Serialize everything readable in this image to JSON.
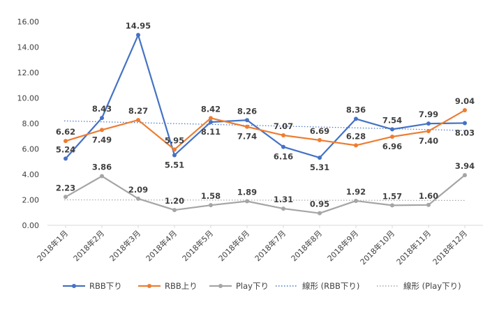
{
  "chart_data": {
    "type": "line",
    "title": "",
    "xlabel": "",
    "ylabel": "",
    "ylim": [
      0,
      16
    ],
    "ytick_step": 2,
    "ytick_labels": [
      "0.00",
      "2.00",
      "4.00",
      "6.00",
      "8.00",
      "10.00",
      "12.00",
      "14.00",
      "16.00"
    ],
    "grid": false,
    "legend_position": "bottom",
    "categories": [
      "2018年1月",
      "2018年2月",
      "2018年3月",
      "2018年4月",
      "2018年5月",
      "2018年6月",
      "2018年7月",
      "2018年8月",
      "2018年9月",
      "2018年10月",
      "2018年11月",
      "2018年12月"
    ],
    "series": [
      {
        "name": "RBB下り",
        "color": "#4472C4",
        "values": [
          5.24,
          8.43,
          14.95,
          5.51,
          8.11,
          8.26,
          6.16,
          5.31,
          8.36,
          7.54,
          7.99,
          8.03
        ],
        "labels": [
          "5.24",
          "8.43",
          "14.95",
          "5.51",
          "8.11",
          "8.26",
          "6.16",
          "5.31",
          "8.36",
          "7.54",
          "7.99",
          "8.03"
        ],
        "label_pos": [
          "above",
          "above",
          "above",
          "below",
          "below",
          "above",
          "below",
          "below",
          "above",
          "above",
          "above",
          "below"
        ]
      },
      {
        "name": "RBB上り",
        "color": "#ED7D31",
        "values": [
          6.62,
          7.49,
          8.27,
          5.95,
          8.42,
          7.74,
          7.07,
          6.69,
          6.28,
          6.96,
          7.4,
          9.04
        ],
        "labels": [
          "6.62",
          "7.49",
          "8.27",
          "5.95",
          "8.42",
          "7.74",
          "7.07",
          "6.69",
          "6.28",
          "6.96",
          "7.40",
          "9.04"
        ],
        "label_pos": [
          "above",
          "below",
          "above",
          "above",
          "above",
          "below",
          "above",
          "above",
          "above",
          "below",
          "below",
          "above"
        ]
      },
      {
        "name": "Play下り",
        "color": "#A5A5A5",
        "values": [
          2.23,
          3.86,
          2.09,
          1.2,
          1.58,
          1.89,
          1.31,
          0.95,
          1.92,
          1.57,
          1.6,
          3.94
        ],
        "labels": [
          "2.23",
          "3.86",
          "2.09",
          "1.20",
          "1.58",
          "1.89",
          "1.31",
          "0.95",
          "1.92",
          "1.57",
          "1.60",
          "3.94"
        ],
        "label_pos": [
          "above",
          "above",
          "above",
          "above",
          "above",
          "above",
          "above",
          "above",
          "above",
          "above",
          "above",
          "above"
        ]
      }
    ],
    "trendlines": [
      {
        "name": "線形 (RBB下り)",
        "color": "#4472C4",
        "style": "dotted",
        "start": 8.2,
        "end": 7.45
      },
      {
        "name": "線形 (Play下り)",
        "color": "#A5A5A5",
        "style": "dotted",
        "start": 2.0,
        "end": 1.95
      }
    ],
    "legend": [
      "RBB下り",
      "RBB上り",
      "Play下り",
      "線形 (RBB下り)",
      "線形 (Play下り)"
    ]
  }
}
